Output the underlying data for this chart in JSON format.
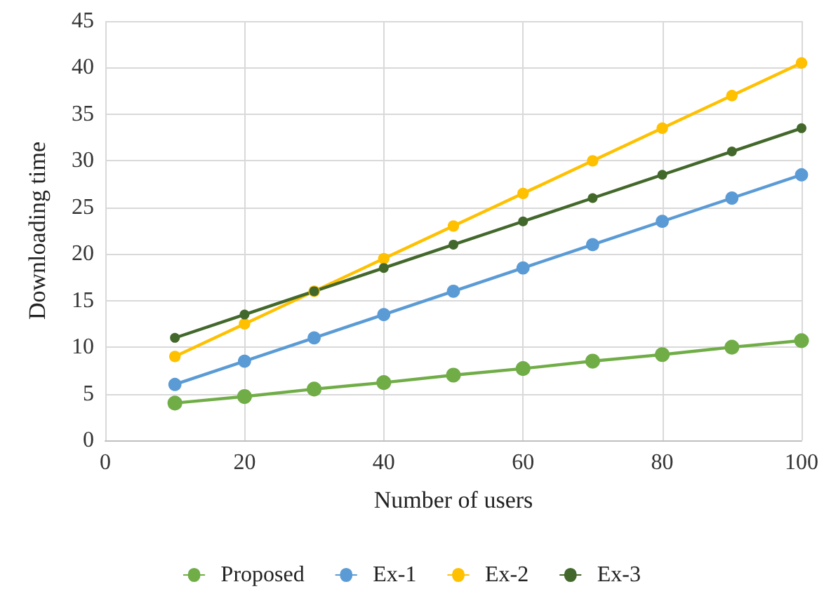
{
  "chart_data": {
    "type": "line",
    "xlabel": "Number of users",
    "ylabel": "Downloading time",
    "x": [
      10,
      20,
      30,
      40,
      50,
      60,
      70,
      80,
      90,
      100
    ],
    "series": [
      {
        "name": "Proposed",
        "color": "#70ad47",
        "values": [
          4,
          4.7,
          5.5,
          6.2,
          7,
          7.7,
          8.5,
          9.2,
          10,
          10.7
        ]
      },
      {
        "name": "Ex-1",
        "color": "#5b9bd5",
        "values": [
          6,
          8.5,
          11,
          13.5,
          16,
          18.5,
          21,
          23.5,
          26,
          28.5
        ]
      },
      {
        "name": "Ex-2",
        "color": "#ffc000",
        "values": [
          9,
          12.5,
          16,
          19.5,
          23,
          26.5,
          30,
          33.5,
          37,
          40.5
        ]
      },
      {
        "name": "Ex-3",
        "color": "#43682b",
        "values": [
          11,
          13.5,
          16,
          18.5,
          21,
          23.5,
          26,
          28.5,
          31,
          33.5
        ]
      }
    ],
    "xlim": [
      0,
      100
    ],
    "xticks": [
      0,
      20,
      40,
      60,
      80,
      100
    ],
    "ylim": [
      0,
      45
    ],
    "yticks": [
      0,
      5,
      10,
      15,
      20,
      25,
      30,
      35,
      40,
      45
    ],
    "grid": true,
    "legend": "bottom",
    "marker": "circle",
    "line_style": "solid"
  }
}
